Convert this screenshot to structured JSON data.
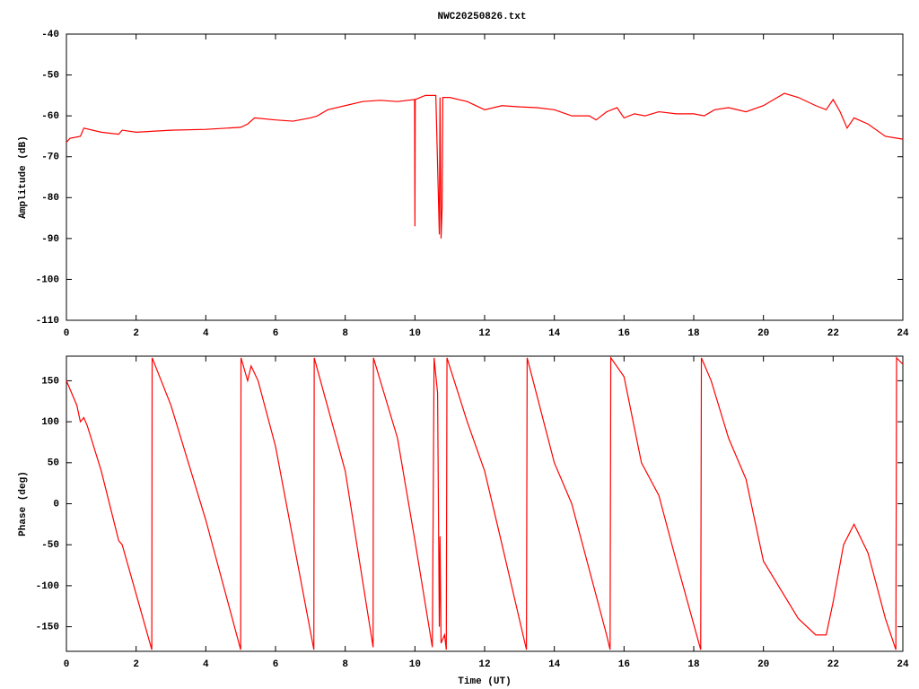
{
  "chart_data": [
    {
      "type": "line",
      "title": "NWC20250826.txt",
      "ylabel": "Amplitude (dB)",
      "color": "#ff0000",
      "xlim": [
        0,
        24
      ],
      "xticks": [
        0,
        2,
        4,
        6,
        8,
        10,
        12,
        14,
        16,
        18,
        20,
        22,
        24
      ],
      "ylim": [
        -110,
        -40
      ],
      "yticks": [
        -110,
        -100,
        -90,
        -80,
        -70,
        -60,
        -50,
        -40
      ],
      "x": [
        0,
        0.1,
        0.4,
        0.5,
        1.0,
        1.5,
        1.6,
        2,
        3,
        4,
        5,
        5.2,
        5.4,
        6,
        6.5,
        7,
        7.2,
        7.5,
        8,
        8.5,
        9,
        9.5,
        9.99,
        10.0,
        10.01,
        10.3,
        10.6,
        10.7,
        10.72,
        10.75,
        10.78,
        10.8,
        11,
        11.5,
        12,
        12.5,
        13,
        13.5,
        14,
        14.5,
        15,
        15.2,
        15.5,
        15.8,
        16,
        16.3,
        16.6,
        17,
        17.5,
        18,
        18.3,
        18.6,
        19,
        19.5,
        20,
        20.3,
        20.6,
        21,
        21.5,
        21.8,
        22,
        22.2,
        22.4,
        22.6,
        23,
        23.5,
        24
      ],
      "values": [
        -66.5,
        -65.5,
        -65,
        -63,
        -64,
        -64.5,
        -63.5,
        -64,
        -63.5,
        -63.3,
        -62.8,
        -62,
        -60.5,
        -61,
        -61.3,
        -60.5,
        -60,
        -58.5,
        -57.5,
        -56.5,
        -56.2,
        -56.5,
        -56,
        -87,
        -56,
        -55,
        -55,
        -89,
        -55.5,
        -90,
        -82.5,
        -55.5,
        -55.5,
        -56.5,
        -58.5,
        -57.5,
        -57.8,
        -58,
        -58.5,
        -60,
        -60,
        -61,
        -59,
        -58,
        -60.5,
        -59.5,
        -60,
        -59,
        -59.5,
        -59.5,
        -60,
        -58.5,
        -58,
        -59,
        -57.5,
        -56,
        -54.5,
        -55.5,
        -57.5,
        -58.5,
        -56,
        -59,
        -63,
        -60.5,
        -62,
        -65,
        -65.7
      ]
    },
    {
      "type": "line",
      "xlabel": "Time (UT)",
      "ylabel": "Phase (deg)",
      "color": "#ff0000",
      "xlim": [
        0,
        24
      ],
      "xticks": [
        0,
        2,
        4,
        6,
        8,
        10,
        12,
        14,
        16,
        18,
        20,
        22,
        24
      ],
      "ylim": [
        -180,
        180
      ],
      "yticks": [
        -150,
        -100,
        -50,
        0,
        50,
        100,
        150
      ],
      "x": [
        0,
        0.3,
        0.4,
        0.5,
        0.6,
        1,
        1.5,
        1.6,
        2,
        2.45,
        2.46,
        3,
        4,
        5.0,
        5.01,
        5.2,
        5.3,
        5.5,
        6,
        7.1,
        7.11,
        8,
        8.8,
        8.81,
        9.5,
        10,
        10.5,
        10.55,
        10.65,
        10.7,
        10.72,
        10.75,
        10.85,
        10.9,
        10.92,
        11.5,
        12,
        12.5,
        13.2,
        13.22,
        14,
        14.5,
        15,
        15.5,
        15.6,
        15.62,
        16,
        16.5,
        17,
        17.5,
        18.2,
        18.22,
        18.5,
        19,
        19.5,
        20,
        21,
        21.5,
        21.8,
        22,
        22.3,
        22.6,
        23,
        23.5,
        23.8,
        23.82,
        24
      ],
      "values": [
        150,
        120,
        100,
        105,
        95,
        40,
        -45,
        -50,
        -110,
        -178,
        178,
        120,
        -20,
        -178,
        178,
        150,
        168,
        150,
        70,
        -178,
        178,
        40,
        -175,
        178,
        80,
        -45,
        -175,
        178,
        135,
        -150,
        -40,
        -170,
        -160,
        -178,
        178,
        100,
        40,
        -50,
        -178,
        178,
        50,
        0,
        -80,
        -160,
        -178,
        178,
        155,
        50,
        10,
        -70,
        -178,
        178,
        150,
        80,
        30,
        -70,
        -140,
        -160,
        -160,
        -120,
        -50,
        -25,
        -60,
        -140,
        -178,
        178,
        170
      ]
    }
  ]
}
